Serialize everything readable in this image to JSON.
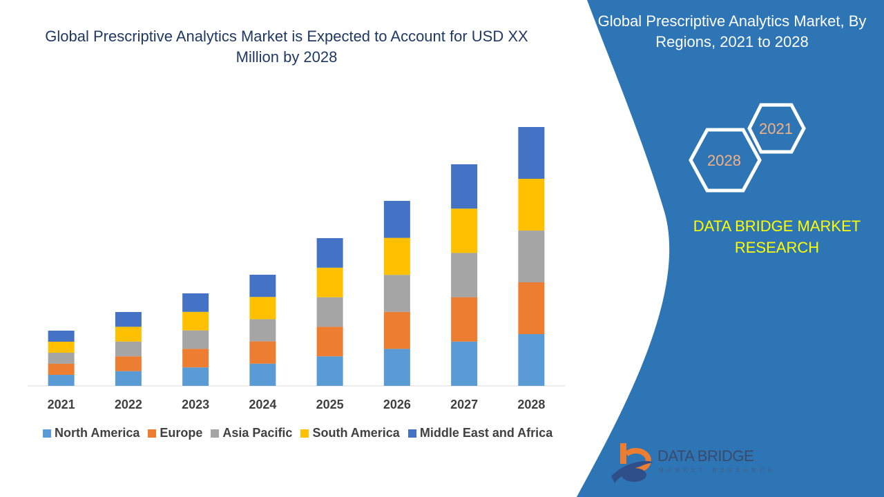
{
  "chart_data": {
    "type": "bar",
    "stacked": true,
    "title": "Global Prescriptive Analytics Market is Expected to Account for USD XX Million by 2028",
    "categories": [
      "2021",
      "2022",
      "2023",
      "2024",
      "2025",
      "2026",
      "2027",
      "2028"
    ],
    "series": [
      {
        "name": "North America",
        "color": "#5b9bd5",
        "values": [
          16,
          21.4,
          26.8,
          32.2,
          42.8,
          53.6,
          64.2,
          75
        ]
      },
      {
        "name": "Europe",
        "color": "#ed7d31",
        "values": [
          16,
          21.4,
          26.8,
          32.2,
          42.8,
          53.6,
          64.2,
          75
        ]
      },
      {
        "name": "Asia Pacific",
        "color": "#a5a5a5",
        "values": [
          16,
          21.4,
          26.8,
          32.2,
          42.8,
          53.6,
          64.2,
          75
        ]
      },
      {
        "name": "South America",
        "color": "#ffc000",
        "values": [
          16,
          21.4,
          26.8,
          32.2,
          42.8,
          53.6,
          64.2,
          75
        ]
      },
      {
        "name": "Middle East and Africa",
        "color": "#4472c4",
        "values": [
          16,
          21.4,
          26.8,
          32.2,
          42.8,
          53.6,
          64.2,
          75
        ]
      }
    ],
    "ylim": [
      0,
      400
    ],
    "grid": false,
    "legend": "bottom"
  },
  "side": {
    "title": "Global Prescriptive Analytics Market, By Regions,  2021 to 2028",
    "hex_start": "2021",
    "hex_end": "2028",
    "brand": "DATA BRIDGE MARKET RESEARCH",
    "panel_color": "#2e75b6",
    "accent_color": "#ffff00"
  },
  "logo": {
    "name": "DATA BRIDGE",
    "sub": "MARKET RESEARCH"
  }
}
